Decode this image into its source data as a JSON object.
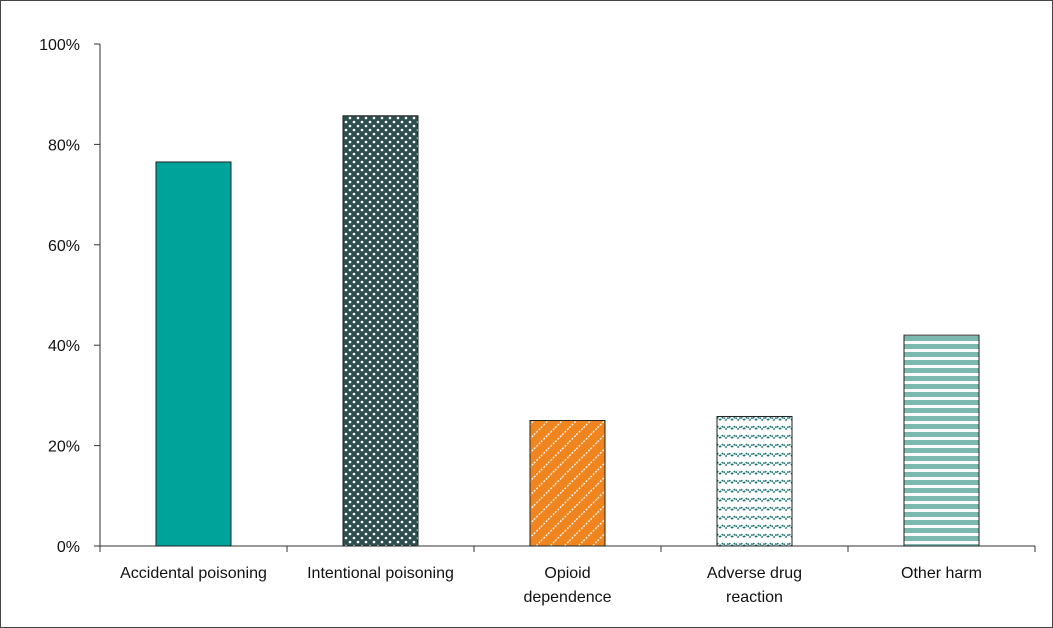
{
  "chart_data": {
    "type": "bar",
    "title": "",
    "xlabel": "",
    "ylabel": "",
    "ylim": [
      0,
      100
    ],
    "y_ticks": [
      "0%",
      "20%",
      "40%",
      "60%",
      "80%",
      "100%"
    ],
    "y_tick_values": [
      0,
      20,
      40,
      60,
      80,
      100
    ],
    "grid": false,
    "legend": "none",
    "categories": [
      [
        "Accidental poisoning"
      ],
      [
        "Intentional poisoning"
      ],
      [
        "Opioid",
        "dependence"
      ],
      [
        "Adverse drug",
        "reaction"
      ],
      [
        "Other harm"
      ]
    ],
    "values": [
      76.5,
      85.7,
      25.0,
      25.8,
      42.0
    ],
    "bar_styles": [
      {
        "fill": "solid",
        "color": "#00a39a"
      },
      {
        "fill": "dots",
        "color": "#2e4f4f"
      },
      {
        "fill": "diagonal-stripes",
        "color": "#f0841e"
      },
      {
        "fill": "zigzag",
        "color": "#1a6e6e"
      },
      {
        "fill": "horizontal-stripes",
        "color": "#7cb8ae"
      }
    ]
  }
}
